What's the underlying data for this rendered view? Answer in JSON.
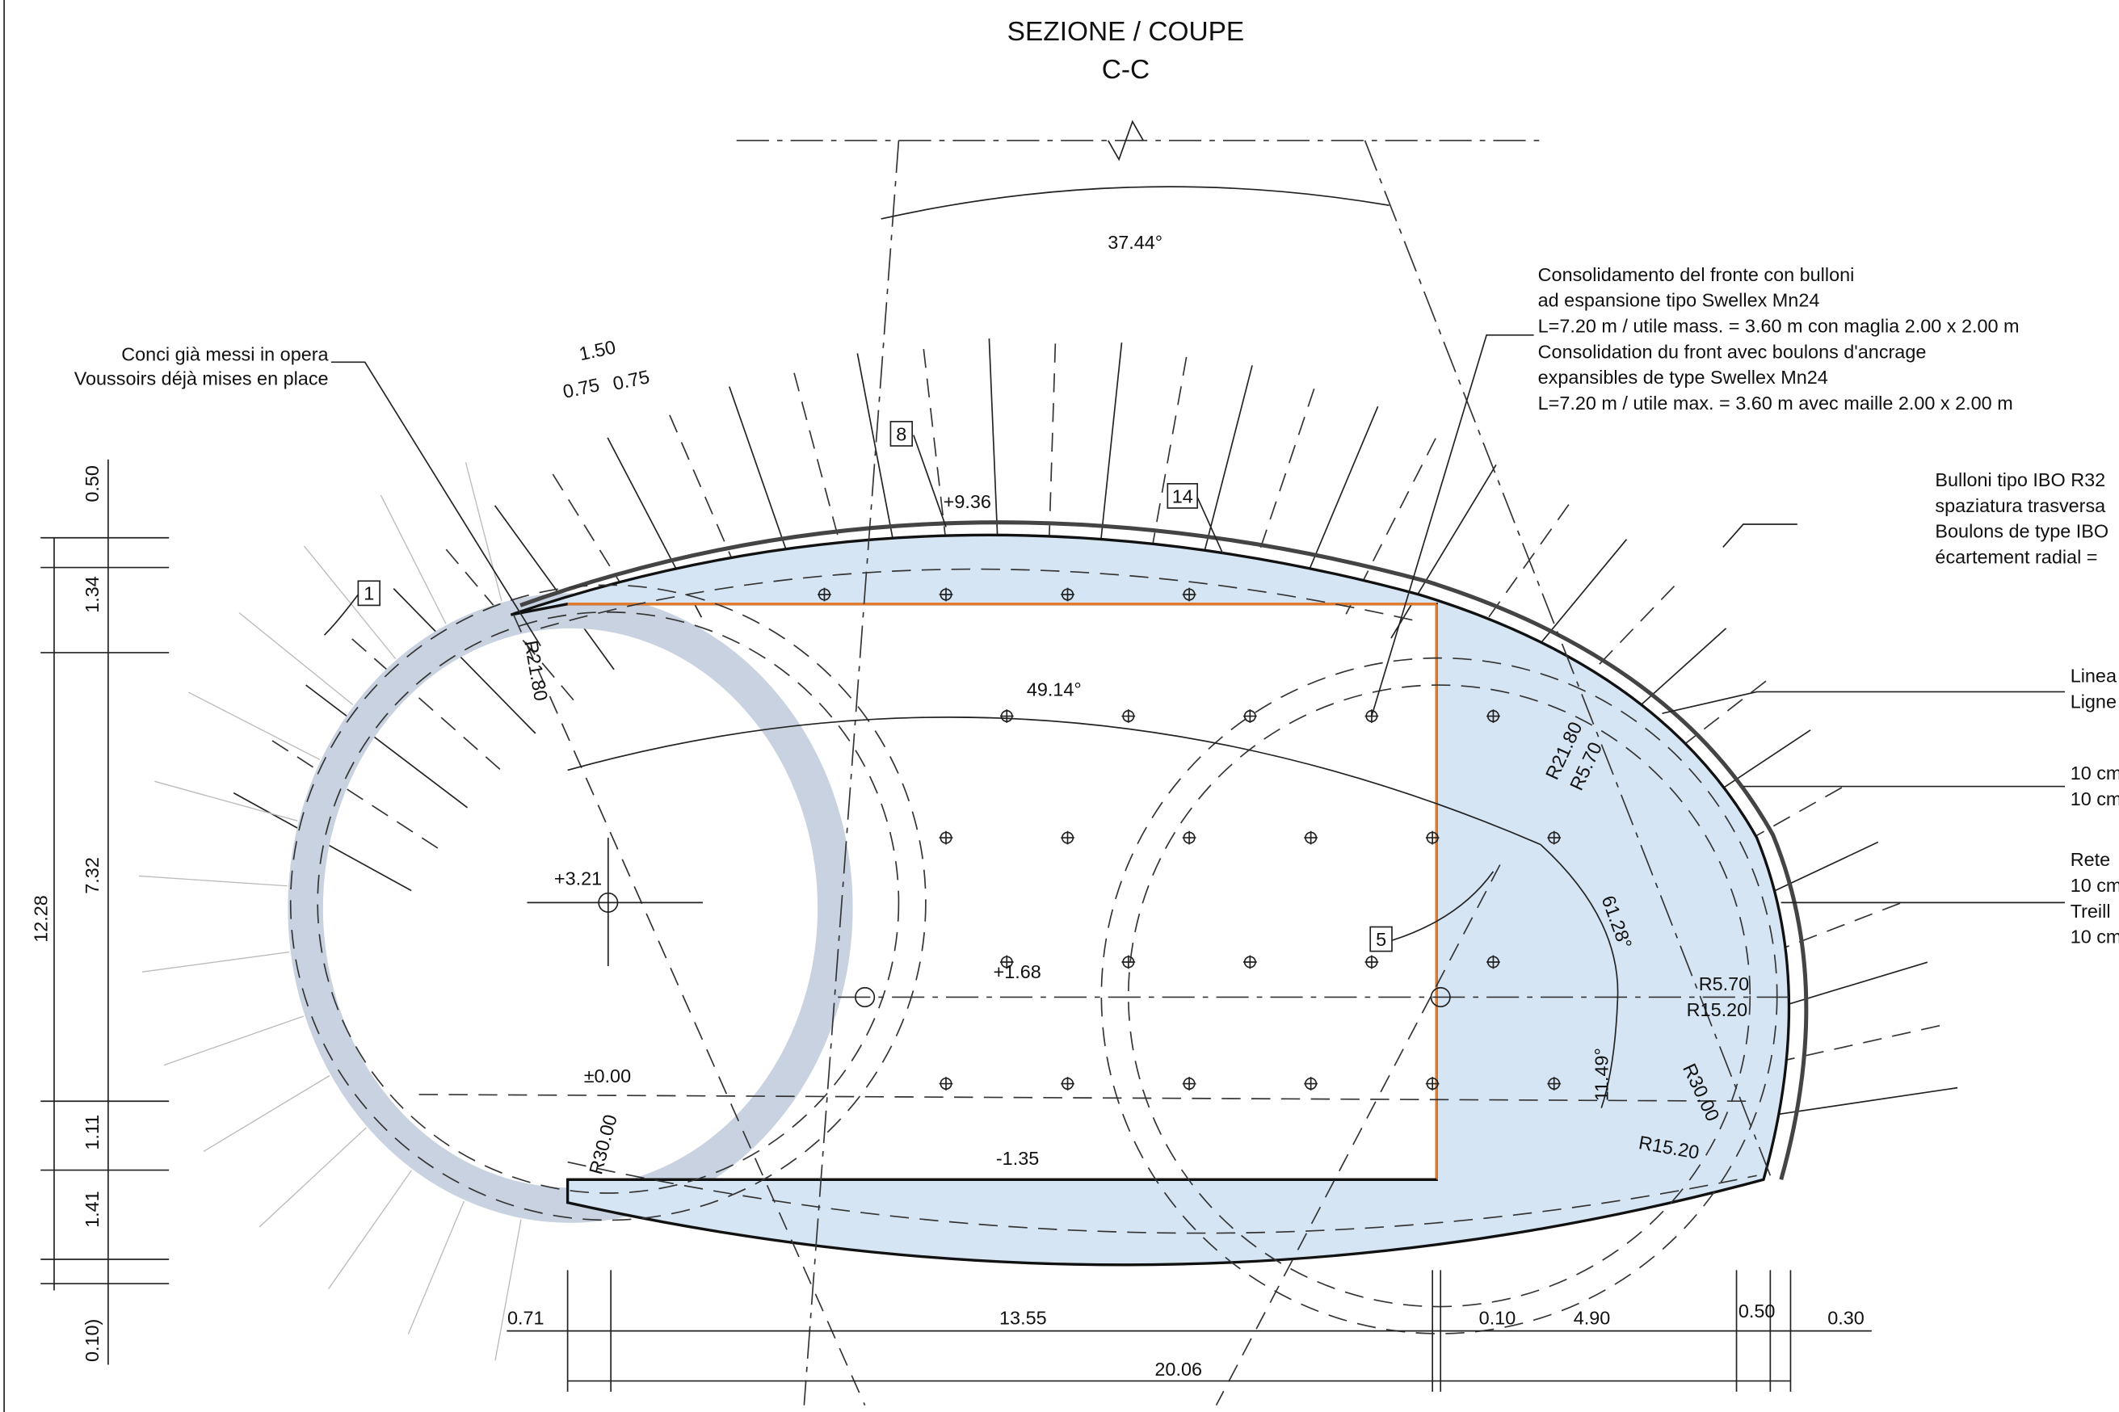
{
  "header": {
    "title": "SEZIONE / COUPE",
    "section": "C-C"
  },
  "notes": {
    "voussoirs": [
      "Conci già messi in opera",
      "Voussoirs déjà mises en place"
    ],
    "face_consolidation": [
      "Consolidamento del fronte con bulloni",
      "ad espansione tipo Swellex Mn24",
      "L=7.20 m / utile mass. = 3.60 m con maglia 2.00 x 2.00 m",
      "Consolidation du front avec boulons d'ancrage",
      "expansibles de type Swellex Mn24",
      "L=7.20 m / utile max. = 3.60 m avec maille 2.00 x 2.00 m"
    ],
    "ibo_bolts": [
      "Bulloni tipo IBO R32",
      "spaziatura trasversa",
      "Boulons de type IBO",
      "écartement radial ="
    ],
    "right": [
      "Linea",
      "Ligne",
      "10 cm",
      "10 cm",
      "Rete",
      "10 cm",
      "Treill",
      "10 cm"
    ]
  },
  "callouts": [
    "1",
    "8",
    "14",
    "5"
  ],
  "angles": [
    "37.44°",
    "49.14°",
    "61.28°",
    "11.49°"
  ],
  "levels": [
    "+9.36",
    "+3.21",
    "+1.68",
    "±0.00",
    "-1.35"
  ],
  "radii": [
    "R21.80",
    "R21.80",
    "R5.70",
    "R5.70",
    "R15.20",
    "R30.00",
    "R15.20",
    "R30.00"
  ],
  "dimensions": {
    "top": [
      "1.50",
      "0.75",
      "0.75"
    ],
    "left": [
      "0.50",
      "1.34",
      "7.32",
      "1.11",
      "1.41",
      "0.10)",
      "12.28"
    ],
    "bottom": [
      "0.71",
      "13.55",
      "0.10",
      "4.90",
      "0.50",
      "0.30",
      "20.06"
    ]
  }
}
